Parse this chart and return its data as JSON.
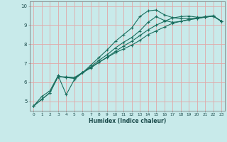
{
  "xlabel": "Humidex (Indice chaleur)",
  "bg_color": "#c8eaea",
  "grid_color": "#e0a8a8",
  "line_color": "#1a6e5e",
  "xlim": [
    -0.5,
    23.4
  ],
  "ylim": [
    4.5,
    10.25
  ],
  "xticks": [
    0,
    1,
    2,
    3,
    4,
    5,
    6,
    7,
    8,
    9,
    10,
    11,
    12,
    13,
    14,
    15,
    16,
    17,
    18,
    19,
    20,
    21,
    22,
    23
  ],
  "yticks": [
    5,
    6,
    7,
    8,
    9,
    10
  ],
  "line1_x": [
    0,
    1,
    2,
    3,
    4,
    5,
    6,
    7,
    8,
    9,
    10,
    11,
    12,
    13,
    14,
    15,
    16,
    17,
    18,
    19,
    20,
    21,
    22,
    23
  ],
  "line1_y": [
    4.75,
    5.25,
    5.55,
    6.35,
    5.35,
    6.15,
    6.5,
    6.9,
    7.3,
    7.7,
    8.15,
    8.5,
    8.85,
    9.45,
    9.75,
    9.8,
    9.55,
    9.4,
    9.35,
    9.35,
    9.35,
    9.45,
    9.5,
    9.2
  ],
  "line2_x": [
    0,
    1,
    2,
    3,
    4,
    5,
    6,
    7,
    8,
    9,
    10,
    11,
    12,
    13,
    14,
    15,
    16,
    17,
    18,
    19,
    20,
    21,
    22,
    23
  ],
  "line2_y": [
    4.75,
    5.1,
    5.45,
    6.3,
    6.25,
    6.2,
    6.5,
    6.75,
    7.05,
    7.3,
    7.55,
    7.75,
    7.95,
    8.2,
    8.5,
    8.7,
    8.9,
    9.1,
    9.2,
    9.3,
    9.38,
    9.42,
    9.48,
    9.2
  ],
  "line3_x": [
    0,
    1,
    2,
    3,
    4,
    5,
    6,
    7,
    8,
    9,
    10,
    11,
    12,
    13,
    14,
    15,
    16,
    17,
    18,
    19,
    20,
    21,
    22,
    23
  ],
  "line3_y": [
    4.75,
    5.1,
    5.45,
    6.3,
    6.25,
    6.22,
    6.52,
    6.82,
    7.15,
    7.45,
    7.8,
    8.1,
    8.35,
    8.7,
    9.15,
    9.45,
    9.25,
    9.15,
    9.2,
    9.28,
    9.35,
    9.42,
    9.48,
    9.2
  ],
  "line4_x": [
    3,
    4,
    5,
    6,
    7,
    8,
    9,
    10,
    11,
    12,
    13,
    14,
    15,
    16,
    17,
    18,
    19,
    20,
    21,
    22,
    23
  ],
  "line4_y": [
    6.3,
    6.28,
    6.25,
    6.52,
    6.78,
    7.05,
    7.32,
    7.62,
    7.9,
    8.15,
    8.45,
    8.75,
    9.0,
    9.2,
    9.38,
    9.45,
    9.48,
    9.42,
    9.42,
    9.48,
    9.2
  ]
}
